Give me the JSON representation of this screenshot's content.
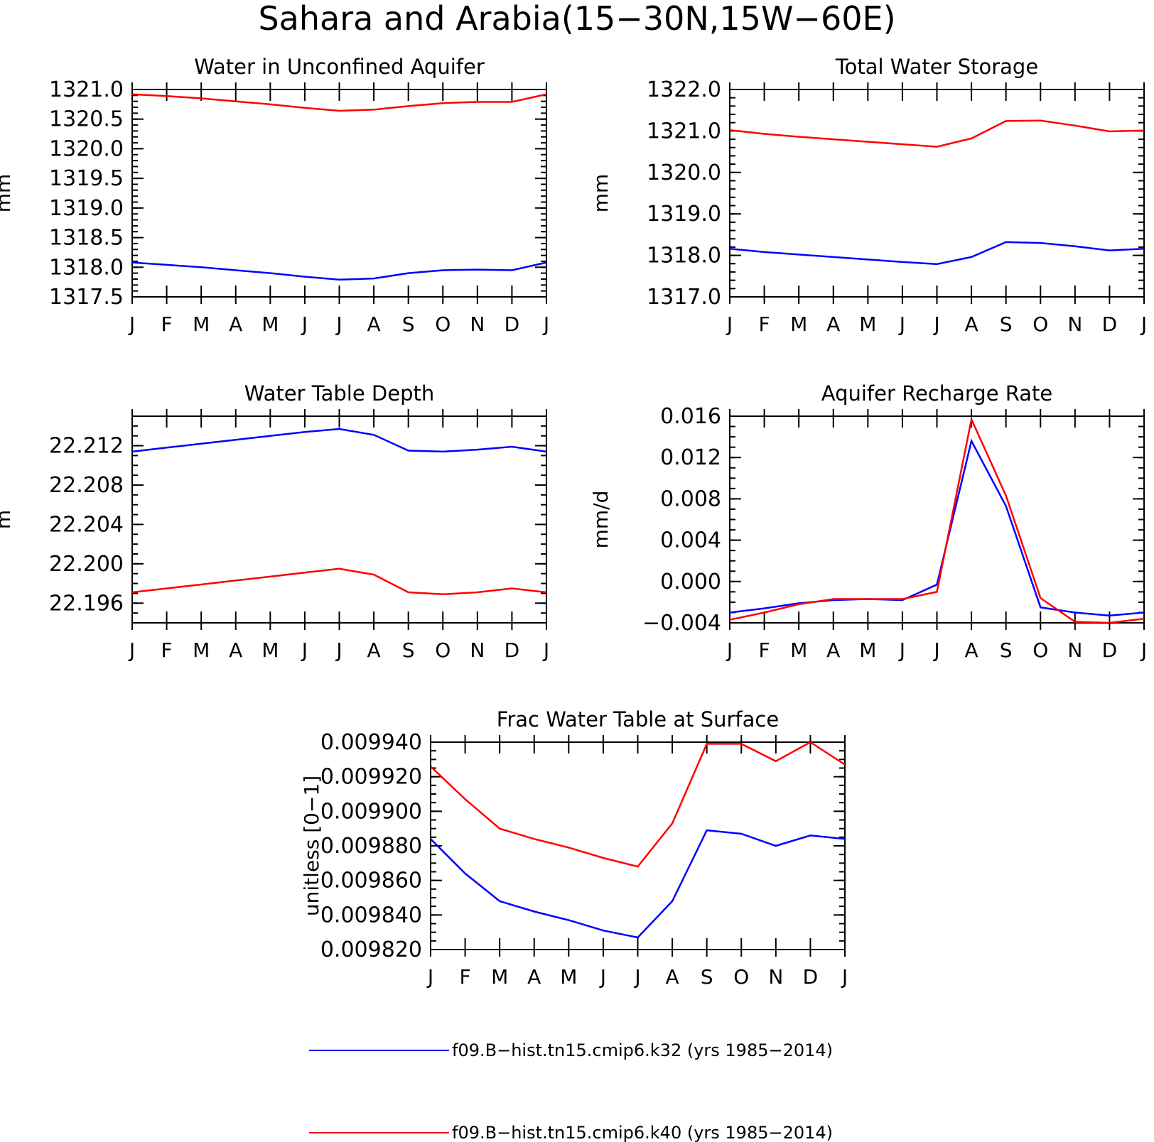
{
  "page_title": "Sahara and Arabia(15−30N,15W−60E)",
  "colors": {
    "run_k32": "#0000ff",
    "run_k40": "#ff0000",
    "axis": "#000000"
  },
  "months": [
    "J",
    "F",
    "M",
    "A",
    "M",
    "J",
    "J",
    "A",
    "S",
    "O",
    "N",
    "D",
    "J"
  ],
  "legend": [
    {
      "label": "f09.B−hist.tn15.cmip6.k32 (yrs 1985−2014)",
      "color": "#0000ff"
    },
    {
      "label": "f09.B−hist.tn15.cmip6.k40 (yrs 1985−2014)",
      "color": "#ff0000"
    }
  ],
  "chart_data": [
    {
      "type": "line",
      "title": "Water in Unconfined Aquifer",
      "ylabel": "mm",
      "xlabel": "",
      "categories": [
        "J",
        "F",
        "M",
        "A",
        "M",
        "J",
        "J",
        "A",
        "S",
        "O",
        "N",
        "D",
        "J"
      ],
      "ylim": [
        1317.5,
        1321.0
      ],
      "yticks": [
        "1321.0",
        "1320.5",
        "1320.0",
        "1319.5",
        "1319.0",
        "1318.5",
        "1318.0",
        "1317.5"
      ],
      "ytick_values": [
        1321.0,
        1320.5,
        1320.0,
        1319.5,
        1319.0,
        1318.5,
        1318.0,
        1317.5
      ],
      "minor_step": 0.1,
      "series": [
        {
          "color": "#ff0000",
          "values": [
            1320.92,
            1320.89,
            1320.85,
            1320.8,
            1320.75,
            1320.69,
            1320.64,
            1320.66,
            1320.72,
            1320.77,
            1320.79,
            1320.79,
            1320.92
          ]
        },
        {
          "color": "#0000ff",
          "values": [
            1318.08,
            1318.04,
            1318.0,
            1317.95,
            1317.9,
            1317.84,
            1317.79,
            1317.81,
            1317.9,
            1317.95,
            1317.96,
            1317.95,
            1318.08
          ]
        }
      ]
    },
    {
      "type": "line",
      "title": "Total Water Storage",
      "ylabel": "mm",
      "xlabel": "",
      "categories": [
        "J",
        "F",
        "M",
        "A",
        "M",
        "J",
        "J",
        "A",
        "S",
        "O",
        "N",
        "D",
        "J"
      ],
      "ylim": [
        1317.0,
        1322.0
      ],
      "yticks": [
        "1322.0",
        "1321.0",
        "1320.0",
        "1319.0",
        "1318.0",
        "1317.0"
      ],
      "ytick_values": [
        1322.0,
        1321.0,
        1320.0,
        1319.0,
        1318.0,
        1317.0
      ],
      "minor_step": 0.2,
      "series": [
        {
          "color": "#ff0000",
          "values": [
            1321.02,
            1320.93,
            1320.86,
            1320.8,
            1320.74,
            1320.68,
            1320.62,
            1320.82,
            1321.24,
            1321.25,
            1321.13,
            1320.99,
            1321.01
          ]
        },
        {
          "color": "#0000ff",
          "values": [
            1318.16,
            1318.08,
            1318.02,
            1317.96,
            1317.9,
            1317.84,
            1317.79,
            1317.96,
            1318.32,
            1318.3,
            1318.22,
            1318.12,
            1318.16
          ]
        }
      ]
    },
    {
      "type": "line",
      "title": "Water Table Depth",
      "ylabel": "m",
      "xlabel": "",
      "categories": [
        "J",
        "F",
        "M",
        "A",
        "M",
        "J",
        "J",
        "A",
        "S",
        "O",
        "N",
        "D",
        "J"
      ],
      "ylim": [
        22.194,
        22.215
      ],
      "yticks": [
        "22.212",
        "22.208",
        "22.204",
        "22.200",
        "22.196"
      ],
      "ytick_values": [
        22.212,
        22.208,
        22.204,
        22.2,
        22.196
      ],
      "minor_step": 0.001,
      "series": [
        {
          "color": "#0000ff",
          "values": [
            22.2114,
            22.2118,
            22.2122,
            22.2126,
            22.213,
            22.2134,
            22.2137,
            22.2131,
            22.2115,
            22.2114,
            22.2116,
            22.2119,
            22.2114
          ]
        },
        {
          "color": "#ff0000",
          "values": [
            22.1971,
            22.1975,
            22.1979,
            22.1983,
            22.1987,
            22.1991,
            22.1995,
            22.1989,
            22.1971,
            22.1969,
            22.1971,
            22.1975,
            22.1971
          ]
        }
      ]
    },
    {
      "type": "line",
      "title": "Aquifer Recharge Rate",
      "ylabel": "mm/d",
      "xlabel": "",
      "categories": [
        "J",
        "F",
        "M",
        "A",
        "M",
        "J",
        "J",
        "A",
        "S",
        "O",
        "N",
        "D",
        "J"
      ],
      "ylim": [
        -0.004,
        0.016
      ],
      "yticks": [
        "0.016",
        "0.012",
        "0.008",
        "0.004",
        "0.000",
        "−0.004"
      ],
      "ytick_values": [
        0.016,
        0.012,
        0.008,
        0.004,
        0.0,
        -0.004
      ],
      "minor_step": 0.001,
      "series": [
        {
          "color": "#0000ff",
          "values": [
            -0.003,
            -0.0026,
            -0.0021,
            -0.0018,
            -0.0017,
            -0.0018,
            -0.0003,
            0.0136,
            0.0073,
            -0.0025,
            -0.003,
            -0.0033,
            -0.003
          ]
        },
        {
          "color": "#ff0000",
          "values": [
            -0.0037,
            -0.003,
            -0.0022,
            -0.0017,
            -0.0017,
            -0.0017,
            -0.001,
            0.0157,
            0.0083,
            -0.0016,
            -0.0039,
            -0.004,
            -0.0036
          ]
        }
      ]
    },
    {
      "type": "line",
      "title": "Frac Water Table at Surface",
      "ylabel": "unitless [0−1]",
      "xlabel": "",
      "categories": [
        "J",
        "F",
        "M",
        "A",
        "M",
        "J",
        "J",
        "A",
        "S",
        "O",
        "N",
        "D",
        "J"
      ],
      "ylim": [
        0.00982,
        0.00994
      ],
      "yticks": [
        "0.009940",
        "0.009920",
        "0.009900",
        "0.009880",
        "0.009860",
        "0.009840",
        "0.009820"
      ],
      "ytick_values": [
        0.00994,
        0.00992,
        0.0099,
        0.00988,
        0.00986,
        0.00984,
        0.00982
      ],
      "minor_step": 5e-06,
      "series": [
        {
          "color": "#ff0000",
          "values": [
            0.009926,
            0.009907,
            0.00989,
            0.009884,
            0.009879,
            0.009873,
            0.009868,
            0.009893,
            0.009939,
            0.009939,
            0.009929,
            0.00994,
            0.009927
          ]
        },
        {
          "color": "#0000ff",
          "values": [
            0.009884,
            0.009864,
            0.009848,
            0.009842,
            0.009837,
            0.009831,
            0.009827,
            0.009848,
            0.009889,
            0.009887,
            0.00988,
            0.009886,
            0.009884
          ]
        }
      ]
    }
  ]
}
